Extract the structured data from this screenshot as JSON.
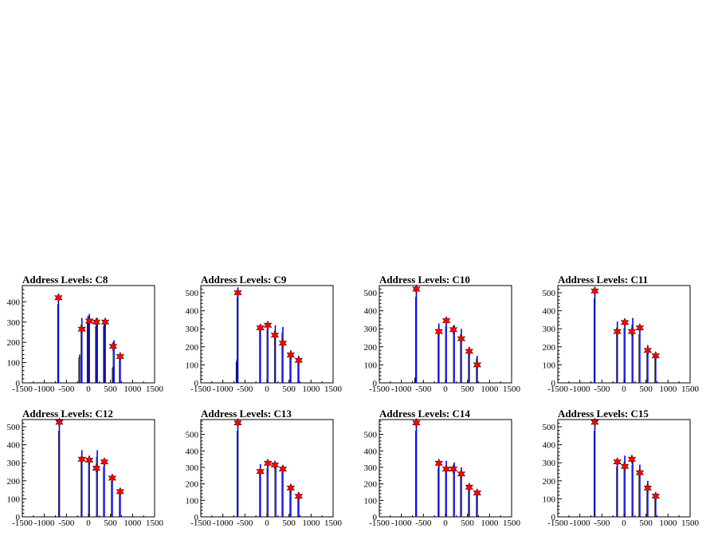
{
  "chart_data": [
    {
      "type": "bar",
      "title": "Address Levels: C8",
      "xlim": [
        -1500,
        1500
      ],
      "ylim": [
        0,
        480
      ],
      "xticks": [
        -1500,
        -1000,
        -500,
        0,
        500,
        1000,
        1500
      ],
      "xtick_labels": [
        "-1500",
        "-1000",
        "-500",
        "0",
        "500",
        "1000",
        "1500"
      ],
      "yticks": [
        0,
        100,
        200,
        300,
        400
      ],
      "ytick_labels": [
        "0",
        "100",
        "200",
        "300",
        "400"
      ],
      "series": [
        {
          "values": [
            {
              "x": -680,
              "y": 430
            },
            {
              "x": -200,
              "y": 140
            },
            {
              "x": -150,
              "y": 320
            },
            {
              "x": -10,
              "y": 330
            },
            {
              "x": 20,
              "y": 340
            },
            {
              "x": 180,
              "y": 310
            },
            {
              "x": 200,
              "y": 320
            },
            {
              "x": 360,
              "y": 310
            },
            {
              "x": 380,
              "y": 310
            },
            {
              "x": 560,
              "y": 80
            },
            {
              "x": 580,
              "y": 210
            },
            {
              "x": 720,
              "y": 140
            }
          ]
        }
      ],
      "peaks": [
        {
          "x": -680,
          "y": 420
        },
        {
          "x": -150,
          "y": 265
        },
        {
          "x": 20,
          "y": 305
        },
        {
          "x": 180,
          "y": 300
        },
        {
          "x": 380,
          "y": 300
        },
        {
          "x": 560,
          "y": 180
        },
        {
          "x": 720,
          "y": 130
        }
      ]
    },
    {
      "type": "bar",
      "title": "Address Levels: C9",
      "xlim": [
        -1500,
        1500
      ],
      "ylim": [
        0,
        540
      ],
      "xticks": [
        -1500,
        -1000,
        -500,
        0,
        500,
        1000,
        1500
      ],
      "xtick_labels": [
        "-1500",
        "-1000",
        "-500",
        "0",
        "500",
        "1000",
        "1500"
      ],
      "yticks": [
        0,
        100,
        200,
        300,
        400,
        500
      ],
      "ytick_labels": [
        "0",
        "100",
        "200",
        "300",
        "400",
        "500"
      ],
      "series": [
        {
          "values": [
            {
              "x": -680,
              "y": 130
            },
            {
              "x": -660,
              "y": 530
            },
            {
              "x": -150,
              "y": 320
            },
            {
              "x": 20,
              "y": 330
            },
            {
              "x": 190,
              "y": 320
            },
            {
              "x": 360,
              "y": 310
            },
            {
              "x": 540,
              "y": 180
            },
            {
              "x": 720,
              "y": 150
            }
          ]
        }
      ],
      "peaks": [
        {
          "x": -660,
          "y": 500
        },
        {
          "x": -150,
          "y": 305
        },
        {
          "x": 20,
          "y": 320
        },
        {
          "x": 180,
          "y": 265
        },
        {
          "x": 360,
          "y": 220
        },
        {
          "x": 540,
          "y": 155
        },
        {
          "x": 720,
          "y": 125
        }
      ]
    },
    {
      "type": "bar",
      "title": "Address Levels: C10",
      "xlim": [
        -1500,
        1500
      ],
      "ylim": [
        0,
        540
      ],
      "xticks": [
        -1500,
        -1000,
        -500,
        0,
        500,
        1000,
        1500
      ],
      "xtick_labels": [
        "-1500",
        "-1000",
        "-500",
        "0",
        "500",
        "1000",
        "1500"
      ],
      "yticks": [
        0,
        100,
        200,
        300,
        400,
        500
      ],
      "ytick_labels": [
        "0",
        "100",
        "200",
        "300",
        "400",
        "500"
      ],
      "series": [
        {
          "values": [
            {
              "x": -680,
              "y": 30
            },
            {
              "x": -660,
              "y": 530
            },
            {
              "x": -150,
              "y": 330
            },
            {
              "x": 20,
              "y": 350
            },
            {
              "x": 200,
              "y": 320
            },
            {
              "x": 360,
              "y": 300
            },
            {
              "x": 540,
              "y": 200
            },
            {
              "x": 720,
              "y": 150
            }
          ]
        }
      ],
      "peaks": [
        {
          "x": -660,
          "y": 520
        },
        {
          "x": -150,
          "y": 285
        },
        {
          "x": 20,
          "y": 345
        },
        {
          "x": 180,
          "y": 295
        },
        {
          "x": 360,
          "y": 245
        },
        {
          "x": 540,
          "y": 175
        },
        {
          "x": 720,
          "y": 100
        }
      ]
    },
    {
      "type": "bar",
      "title": "Address Levels: C11",
      "xlim": [
        -1500,
        1500
      ],
      "ylim": [
        0,
        540
      ],
      "xticks": [
        -1500,
        -1000,
        -500,
        0,
        500,
        1000,
        1500
      ],
      "xtick_labels": [
        "-1500",
        "-1000",
        "-500",
        "0",
        "500",
        "1000",
        "1500"
      ],
      "yticks": [
        0,
        100,
        200,
        300,
        400,
        500
      ],
      "ytick_labels": [
        "0",
        "100",
        "200",
        "300",
        "400",
        "500"
      ],
      "series": [
        {
          "values": [
            {
              "x": -660,
              "y": 520
            },
            {
              "x": -150,
              "y": 340
            },
            {
              "x": 20,
              "y": 340
            },
            {
              "x": 200,
              "y": 360
            },
            {
              "x": 360,
              "y": 300
            },
            {
              "x": 540,
              "y": 210
            },
            {
              "x": 720,
              "y": 160
            }
          ]
        }
      ],
      "peaks": [
        {
          "x": -660,
          "y": 510
        },
        {
          "x": -150,
          "y": 285
        },
        {
          "x": 20,
          "y": 335
        },
        {
          "x": 180,
          "y": 285
        },
        {
          "x": 360,
          "y": 305
        },
        {
          "x": 540,
          "y": 180
        },
        {
          "x": 720,
          "y": 150
        }
      ]
    },
    {
      "type": "bar",
      "title": "Address Levels: C12",
      "xlim": [
        -1500,
        1500
      ],
      "ylim": [
        0,
        540
      ],
      "xticks": [
        -1500,
        -1000,
        -500,
        0,
        500,
        1000,
        1500
      ],
      "xtick_labels": [
        "-1500",
        "-1000",
        "-500",
        "0",
        "500",
        "1000",
        "1500"
      ],
      "yticks": [
        0,
        100,
        200,
        300,
        400,
        500
      ],
      "ytick_labels": [
        "0",
        "100",
        "200",
        "300",
        "400",
        "500"
      ],
      "series": [
        {
          "values": [
            {
              "x": -660,
              "y": 530
            },
            {
              "x": -150,
              "y": 370
            },
            {
              "x": 20,
              "y": 340
            },
            {
              "x": 200,
              "y": 370
            },
            {
              "x": 360,
              "y": 310
            },
            {
              "x": 540,
              "y": 220
            },
            {
              "x": 720,
              "y": 150
            }
          ]
        }
      ],
      "peaks": [
        {
          "x": -660,
          "y": 525
        },
        {
          "x": -150,
          "y": 320
        },
        {
          "x": 20,
          "y": 315
        },
        {
          "x": 180,
          "y": 270
        },
        {
          "x": 360,
          "y": 305
        },
        {
          "x": 540,
          "y": 215
        },
        {
          "x": 720,
          "y": 140
        }
      ]
    },
    {
      "type": "bar",
      "title": "Address Levels: C13",
      "xlim": [
        -1500,
        1500
      ],
      "ylim": [
        0,
        590
      ],
      "xticks": [
        -1500,
        -1000,
        -500,
        0,
        500,
        1000,
        1500
      ],
      "xtick_labels": [
        "-1500",
        "-1000",
        "-500",
        "0",
        "500",
        "1000",
        "1500"
      ],
      "yticks": [
        0,
        100,
        200,
        300,
        400,
        500
      ],
      "ytick_labels": [
        "0",
        "100",
        "200",
        "300",
        "400",
        "500"
      ],
      "series": [
        {
          "values": [
            {
              "x": -660,
              "y": 580
            },
            {
              "x": -150,
              "y": 320
            },
            {
              "x": 20,
              "y": 330
            },
            {
              "x": 200,
              "y": 320
            },
            {
              "x": 360,
              "y": 300
            },
            {
              "x": 540,
              "y": 190
            },
            {
              "x": 720,
              "y": 150
            }
          ]
        }
      ],
      "peaks": [
        {
          "x": -660,
          "y": 570
        },
        {
          "x": -150,
          "y": 275
        },
        {
          "x": 20,
          "y": 325
        },
        {
          "x": 180,
          "y": 315
        },
        {
          "x": 360,
          "y": 290
        },
        {
          "x": 540,
          "y": 175
        },
        {
          "x": 720,
          "y": 125
        }
      ]
    },
    {
      "type": "bar",
      "title": "Address Levels: C14",
      "xlim": [
        -1500,
        1500
      ],
      "ylim": [
        0,
        590
      ],
      "xticks": [
        -1500,
        -1000,
        -500,
        0,
        500,
        1000,
        1500
      ],
      "xtick_labels": [
        "-1500",
        "-1000",
        "-500",
        "0",
        "500",
        "1000",
        "1500"
      ],
      "yticks": [
        0,
        100,
        200,
        300,
        400,
        500
      ],
      "ytick_labels": [
        "0",
        "100",
        "200",
        "300",
        "400",
        "500"
      ],
      "series": [
        {
          "values": [
            {
              "x": -660,
              "y": 580
            },
            {
              "x": -150,
              "y": 330
            },
            {
              "x": 20,
              "y": 340
            },
            {
              "x": 200,
              "y": 330
            },
            {
              "x": 360,
              "y": 300
            },
            {
              "x": 540,
              "y": 200
            },
            {
              "x": 720,
              "y": 160
            }
          ]
        }
      ],
      "peaks": [
        {
          "x": -660,
          "y": 570
        },
        {
          "x": -150,
          "y": 325
        },
        {
          "x": 20,
          "y": 290
        },
        {
          "x": 180,
          "y": 290
        },
        {
          "x": 360,
          "y": 260
        },
        {
          "x": 540,
          "y": 180
        },
        {
          "x": 720,
          "y": 145
        }
      ]
    },
    {
      "type": "bar",
      "title": "Address Levels: C15",
      "xlim": [
        -1500,
        1500
      ],
      "ylim": [
        0,
        540
      ],
      "xticks": [
        -1500,
        -1000,
        -500,
        0,
        500,
        1000,
        1500
      ],
      "xtick_labels": [
        "-1500",
        "-1000",
        "-500",
        "0",
        "500",
        "1000",
        "1500"
      ],
      "yticks": [
        0,
        100,
        200,
        300,
        400,
        500
      ],
      "ytick_labels": [
        "0",
        "100",
        "200",
        "300",
        "400",
        "500"
      ],
      "series": [
        {
          "values": [
            {
              "x": -660,
              "y": 530
            },
            {
              "x": -150,
              "y": 310
            },
            {
              "x": 20,
              "y": 340
            },
            {
              "x": 200,
              "y": 320
            },
            {
              "x": 360,
              "y": 290
            },
            {
              "x": 540,
              "y": 200
            },
            {
              "x": 720,
              "y": 130
            }
          ]
        }
      ],
      "peaks": [
        {
          "x": -660,
          "y": 525
        },
        {
          "x": -150,
          "y": 305
        },
        {
          "x": 20,
          "y": 280
        },
        {
          "x": 180,
          "y": 320
        },
        {
          "x": 360,
          "y": 245
        },
        {
          "x": 540,
          "y": 160
        },
        {
          "x": 720,
          "y": 115
        }
      ]
    }
  ],
  "colors": {
    "histogram": "#0000ff",
    "peak_marker": "#ff0000",
    "axis": "#000000",
    "background": "#ffffff"
  }
}
